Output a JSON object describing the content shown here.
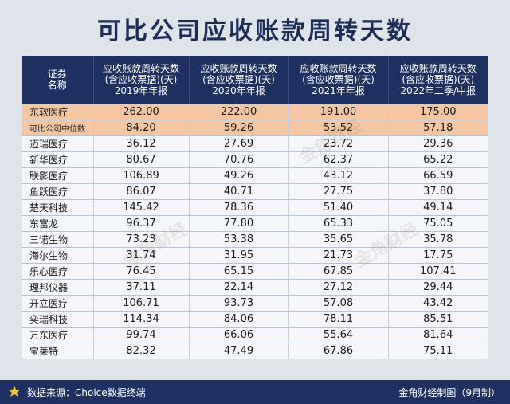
{
  "title": "可比公司应收账款周转天数",
  "chart_data": {
    "type": "table",
    "columns": [
      "证券\n名称",
      "应收账款周转天数\n(含应收票据)(天)\n2019年年报",
      "应收账款周转天数\n(含应收票据)(天)\n2020年年报",
      "应收账款周转天数\n(含应收票据)(天)\n2021年年报",
      "应收账款周转天数\n(含应收票据)(天)\n2022年二季/中报"
    ],
    "rows": [
      {
        "name": "东软医疗",
        "values": [
          "262.00",
          "222.00",
          "191.00",
          "175.00"
        ],
        "highlight": true
      },
      {
        "name": "可比公司中位数",
        "values": [
          "84.20",
          "59.26",
          "53.52",
          "57.18"
        ],
        "highlight": true
      },
      {
        "name": "迈瑞医疗",
        "values": [
          "36.12",
          "27.69",
          "23.72",
          "29.36"
        ]
      },
      {
        "name": "新华医疗",
        "values": [
          "80.67",
          "70.76",
          "62.37",
          "65.22"
        ]
      },
      {
        "name": "联影医疗",
        "values": [
          "106.89",
          "49.26",
          "43.12",
          "66.59"
        ]
      },
      {
        "name": "鱼跃医疗",
        "values": [
          "86.07",
          "40.71",
          "27.75",
          "37.80"
        ]
      },
      {
        "name": "楚天科技",
        "values": [
          "145.42",
          "78.36",
          "51.40",
          "49.14"
        ]
      },
      {
        "name": "东富龙",
        "values": [
          "96.37",
          "77.80",
          "65.33",
          "75.05"
        ]
      },
      {
        "name": "三诺生物",
        "values": [
          "73.23",
          "53.38",
          "35.65",
          "35.78"
        ]
      },
      {
        "name": "海尔生物",
        "values": [
          "31.74",
          "31.95",
          "21.73",
          "17.75"
        ]
      },
      {
        "name": "乐心医疗",
        "values": [
          "76.45",
          "65.15",
          "67.85",
          "107.41"
        ]
      },
      {
        "name": "理邦仪器",
        "values": [
          "37.11",
          "22.14",
          "27.12",
          "29.44"
        ]
      },
      {
        "name": "开立医疗",
        "values": [
          "106.71",
          "93.73",
          "57.08",
          "43.42"
        ]
      },
      {
        "name": "奕瑞科技",
        "values": [
          "114.34",
          "84.06",
          "78.11",
          "85.51"
        ]
      },
      {
        "name": "万东医疗",
        "values": [
          "99.74",
          "66.06",
          "55.64",
          "81.64"
        ]
      },
      {
        "name": "宝莱特",
        "values": [
          "82.32",
          "47.49",
          "67.86",
          "75.11"
        ]
      }
    ]
  },
  "footer": {
    "source": "数据来源：Choice数据终端",
    "credit": "金角财经制图（9月制）",
    "icon": "star-icon"
  },
  "watermark": "金角财经",
  "colors": {
    "header_bg": "#1e3160",
    "highlight_bg": "#f4c6a2",
    "title": "#1c2e57"
  }
}
